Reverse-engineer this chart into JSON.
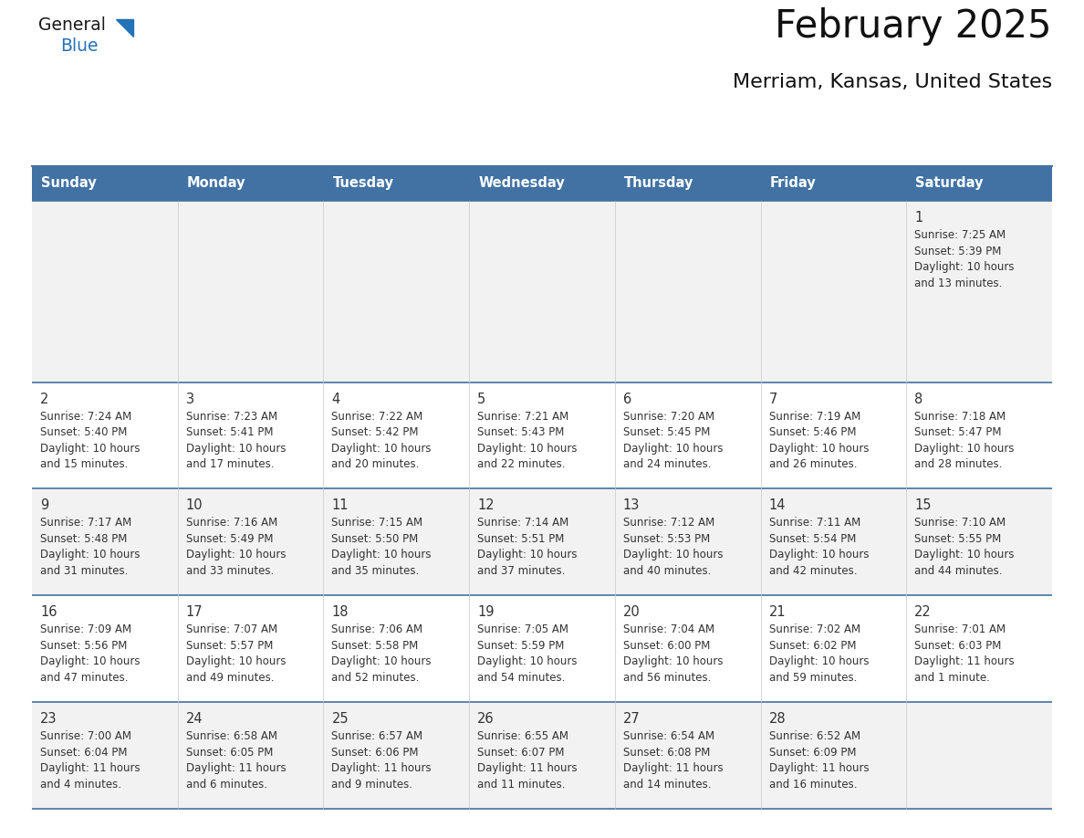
{
  "title": "February 2025",
  "subtitle": "Merriam, Kansas, United States",
  "header_bg": "#4272a4",
  "header_text_color": "#ffffff",
  "weekdays": [
    "Sunday",
    "Monday",
    "Tuesday",
    "Wednesday",
    "Thursday",
    "Friday",
    "Saturday"
  ],
  "row_bg": [
    "#f2f2f2",
    "#ffffff",
    "#f2f2f2",
    "#ffffff",
    "#f2f2f2"
  ],
  "border_color": "#4272a4",
  "day_number_color": "#333333",
  "cell_text_color": "#333333",
  "calendar": [
    [
      null,
      null,
      null,
      null,
      null,
      null,
      {
        "day": 1,
        "sunrise": "7:25 AM",
        "sunset": "5:39 PM",
        "daylight": "10 hours\nand 13 minutes."
      }
    ],
    [
      {
        "day": 2,
        "sunrise": "7:24 AM",
        "sunset": "5:40 PM",
        "daylight": "10 hours\nand 15 minutes."
      },
      {
        "day": 3,
        "sunrise": "7:23 AM",
        "sunset": "5:41 PM",
        "daylight": "10 hours\nand 17 minutes."
      },
      {
        "day": 4,
        "sunrise": "7:22 AM",
        "sunset": "5:42 PM",
        "daylight": "10 hours\nand 20 minutes."
      },
      {
        "day": 5,
        "sunrise": "7:21 AM",
        "sunset": "5:43 PM",
        "daylight": "10 hours\nand 22 minutes."
      },
      {
        "day": 6,
        "sunrise": "7:20 AM",
        "sunset": "5:45 PM",
        "daylight": "10 hours\nand 24 minutes."
      },
      {
        "day": 7,
        "sunrise": "7:19 AM",
        "sunset": "5:46 PM",
        "daylight": "10 hours\nand 26 minutes."
      },
      {
        "day": 8,
        "sunrise": "7:18 AM",
        "sunset": "5:47 PM",
        "daylight": "10 hours\nand 28 minutes."
      }
    ],
    [
      {
        "day": 9,
        "sunrise": "7:17 AM",
        "sunset": "5:48 PM",
        "daylight": "10 hours\nand 31 minutes."
      },
      {
        "day": 10,
        "sunrise": "7:16 AM",
        "sunset": "5:49 PM",
        "daylight": "10 hours\nand 33 minutes."
      },
      {
        "day": 11,
        "sunrise": "7:15 AM",
        "sunset": "5:50 PM",
        "daylight": "10 hours\nand 35 minutes."
      },
      {
        "day": 12,
        "sunrise": "7:14 AM",
        "sunset": "5:51 PM",
        "daylight": "10 hours\nand 37 minutes."
      },
      {
        "day": 13,
        "sunrise": "7:12 AM",
        "sunset": "5:53 PM",
        "daylight": "10 hours\nand 40 minutes."
      },
      {
        "day": 14,
        "sunrise": "7:11 AM",
        "sunset": "5:54 PM",
        "daylight": "10 hours\nand 42 minutes."
      },
      {
        "day": 15,
        "sunrise": "7:10 AM",
        "sunset": "5:55 PM",
        "daylight": "10 hours\nand 44 minutes."
      }
    ],
    [
      {
        "day": 16,
        "sunrise": "7:09 AM",
        "sunset": "5:56 PM",
        "daylight": "10 hours\nand 47 minutes."
      },
      {
        "day": 17,
        "sunrise": "7:07 AM",
        "sunset": "5:57 PM",
        "daylight": "10 hours\nand 49 minutes."
      },
      {
        "day": 18,
        "sunrise": "7:06 AM",
        "sunset": "5:58 PM",
        "daylight": "10 hours\nand 52 minutes."
      },
      {
        "day": 19,
        "sunrise": "7:05 AM",
        "sunset": "5:59 PM",
        "daylight": "10 hours\nand 54 minutes."
      },
      {
        "day": 20,
        "sunrise": "7:04 AM",
        "sunset": "6:00 PM",
        "daylight": "10 hours\nand 56 minutes."
      },
      {
        "day": 21,
        "sunrise": "7:02 AM",
        "sunset": "6:02 PM",
        "daylight": "10 hours\nand 59 minutes."
      },
      {
        "day": 22,
        "sunrise": "7:01 AM",
        "sunset": "6:03 PM",
        "daylight": "11 hours\nand 1 minute."
      }
    ],
    [
      {
        "day": 23,
        "sunrise": "7:00 AM",
        "sunset": "6:04 PM",
        "daylight": "11 hours\nand 4 minutes."
      },
      {
        "day": 24,
        "sunrise": "6:58 AM",
        "sunset": "6:05 PM",
        "daylight": "11 hours\nand 6 minutes."
      },
      {
        "day": 25,
        "sunrise": "6:57 AM",
        "sunset": "6:06 PM",
        "daylight": "11 hours\nand 9 minutes."
      },
      {
        "day": 26,
        "sunrise": "6:55 AM",
        "sunset": "6:07 PM",
        "daylight": "11 hours\nand 11 minutes."
      },
      {
        "day": 27,
        "sunrise": "6:54 AM",
        "sunset": "6:08 PM",
        "daylight": "11 hours\nand 14 minutes."
      },
      {
        "day": 28,
        "sunrise": "6:52 AM",
        "sunset": "6:09 PM",
        "daylight": "11 hours\nand 16 minutes."
      },
      null
    ]
  ],
  "logo_text1_color": "#1a1a1a",
  "logo_text2_color": "#2472b8",
  "logo_triangle_color": "#2472b8",
  "fig_width": 11.88,
  "fig_height": 9.18,
  "dpi": 100
}
